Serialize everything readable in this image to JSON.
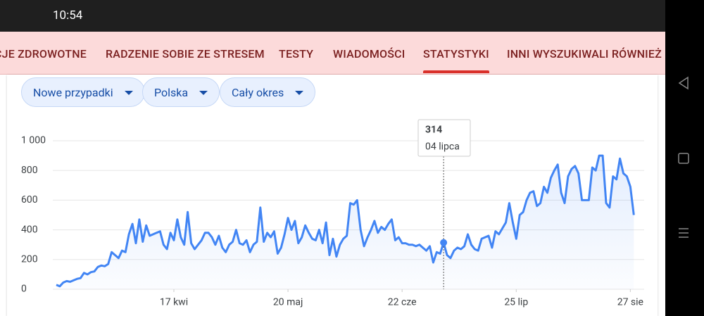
{
  "status_bar": {
    "time": "10:54"
  },
  "tabs": [
    "CJE ZDROWOTNE",
    "RADZENIE SOBIE ZE STRESEM",
    "TESTY",
    "WIADOMOŚCI",
    "STATYSTYKI",
    "INNI WYSZUKIWALI RÓWNIEŻ"
  ],
  "filters": [
    "Nowe przypadki",
    "Polska",
    "Cały okres"
  ],
  "chart_data": {
    "type": "line",
    "color": "#4285f4",
    "grid": true,
    "values": [
      30,
      20,
      45,
      55,
      50,
      60,
      70,
      75,
      110,
      100,
      115,
      120,
      150,
      160,
      155,
      170,
      250,
      230,
      210,
      260,
      250,
      370,
      440,
      310,
      470,
      320,
      430,
      360,
      370,
      380,
      390,
      300,
      270,
      380,
      330,
      470,
      350,
      300,
      520,
      310,
      270,
      300,
      330,
      380,
      380,
      350,
      300,
      360,
      280,
      250,
      300,
      320,
      400,
      310,
      300,
      330,
      250,
      300,
      320,
      550,
      320,
      380,
      350,
      390,
      240,
      280,
      370,
      480,
      400,
      460,
      310,
      350,
      430,
      380,
      340,
      330,
      400,
      310,
      450,
      230,
      340,
      220,
      300,
      340,
      360,
      580,
      570,
      600,
      400,
      290,
      350,
      400,
      460,
      380,
      420,
      400,
      440,
      470,
      330,
      350,
      310,
      310,
      300,
      300,
      290,
      300,
      280,
      260,
      290,
      180,
      250,
      240,
      314,
      230,
      210,
      260,
      280,
      270,
      290,
      370,
      300,
      270,
      260,
      340,
      350,
      360,
      280,
      390,
      370,
      410,
      450,
      580,
      450,
      340,
      500,
      520,
      600,
      650,
      660,
      560,
      580,
      690,
      650,
      750,
      800,
      840,
      650,
      580,
      760,
      810,
      830,
      780,
      600,
      600,
      600,
      820,
      800,
      900,
      900,
      580,
      550,
      760,
      740,
      880,
      780,
      760,
      690,
      500
    ],
    "xlim": [
      0,
      170
    ],
    "xticks": [
      {
        "value": 34,
        "label": "17 kwi"
      },
      {
        "value": 67,
        "label": "20 maj"
      },
      {
        "value": 100,
        "label": "22 cze"
      },
      {
        "value": 133,
        "label": "25 lip"
      },
      {
        "value": 166,
        "label": "27 sie"
      }
    ],
    "ylim": [
      0,
      1000
    ],
    "yticks": [
      0,
      200,
      400,
      600,
      800,
      {
        "value": 1000,
        "label": "1 000"
      }
    ],
    "tooltip": {
      "index": 112,
      "value": 314,
      "label": "04 lipca"
    }
  }
}
